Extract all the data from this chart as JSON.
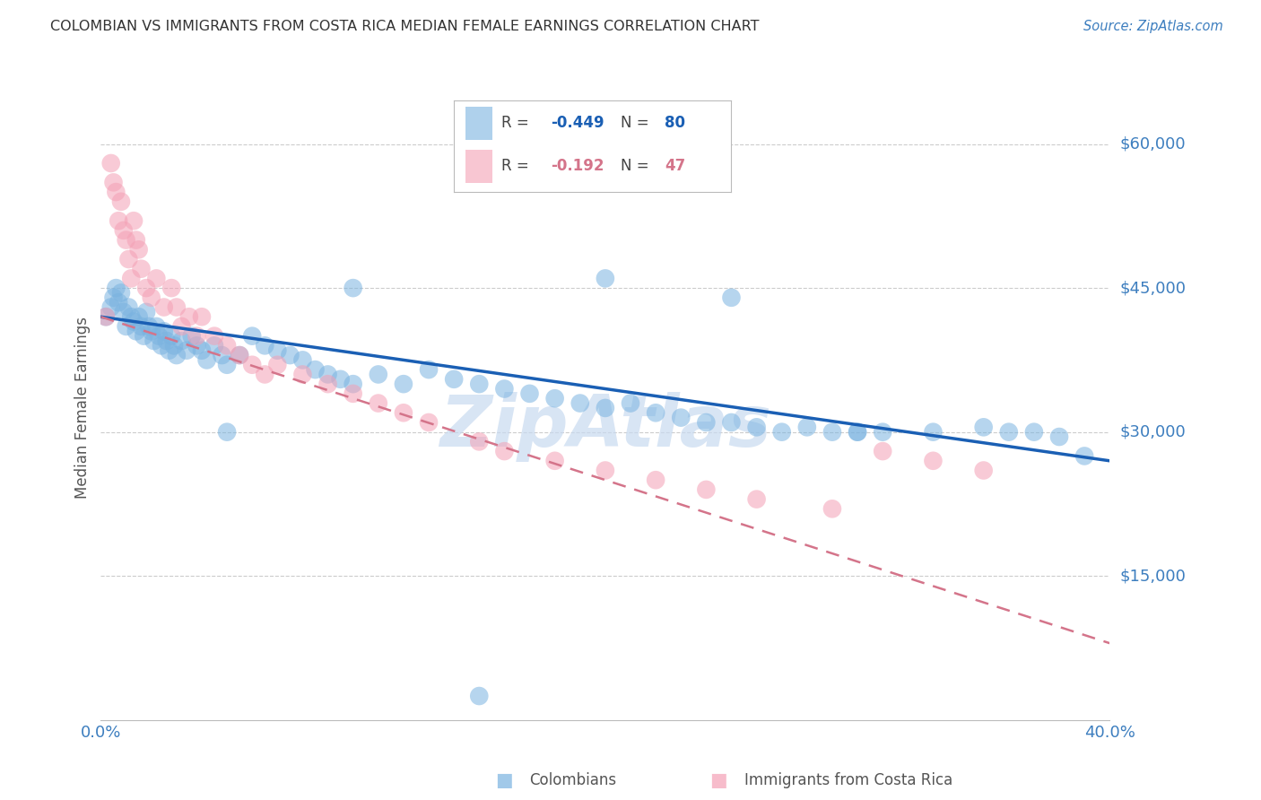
{
  "title": "COLOMBIAN VS IMMIGRANTS FROM COSTA RICA MEDIAN FEMALE EARNINGS CORRELATION CHART",
  "source": "Source: ZipAtlas.com",
  "ylabel": "Median Female Earnings",
  "ytick_labels": [
    "$60,000",
    "$45,000",
    "$30,000",
    "$15,000"
  ],
  "ytick_values": [
    60000,
    45000,
    30000,
    15000
  ],
  "ymin": 0,
  "ymax": 65000,
  "xmin": 0.0,
  "xmax": 0.4,
  "legend_blue_r": "-0.449",
  "legend_blue_n": "80",
  "legend_pink_r": "-0.192",
  "legend_pink_n": "47",
  "blue_color": "#7ab3e0",
  "pink_color": "#f4a0b5",
  "line_blue": "#1a5fb4",
  "line_pink": "#d4748a",
  "title_color": "#333333",
  "axis_label_color": "#3d7ebf",
  "watermark_color": "#c8daf0",
  "background_color": "#ffffff",
  "blue_scatter_x": [
    0.002,
    0.004,
    0.005,
    0.006,
    0.007,
    0.008,
    0.009,
    0.01,
    0.011,
    0.012,
    0.013,
    0.014,
    0.015,
    0.016,
    0.017,
    0.018,
    0.019,
    0.02,
    0.021,
    0.022,
    0.023,
    0.024,
    0.025,
    0.026,
    0.027,
    0.028,
    0.029,
    0.03,
    0.032,
    0.034,
    0.036,
    0.038,
    0.04,
    0.042,
    0.045,
    0.048,
    0.05,
    0.055,
    0.06,
    0.065,
    0.07,
    0.075,
    0.08,
    0.085,
    0.09,
    0.095,
    0.1,
    0.11,
    0.12,
    0.13,
    0.14,
    0.15,
    0.16,
    0.17,
    0.18,
    0.19,
    0.2,
    0.21,
    0.22,
    0.23,
    0.24,
    0.25,
    0.26,
    0.27,
    0.28,
    0.29,
    0.3,
    0.31,
    0.33,
    0.35,
    0.36,
    0.37,
    0.38,
    0.39,
    0.2,
    0.25,
    0.3,
    0.15,
    0.1,
    0.05
  ],
  "blue_scatter_y": [
    42000,
    43000,
    44000,
    45000,
    43500,
    44500,
    42500,
    41000,
    43000,
    42000,
    41500,
    40500,
    42000,
    41000,
    40000,
    42500,
    41000,
    40500,
    39500,
    41000,
    40000,
    39000,
    40500,
    39500,
    38500,
    40000,
    39000,
    38000,
    39500,
    38500,
    40000,
    39000,
    38500,
    37500,
    39000,
    38000,
    37000,
    38000,
    40000,
    39000,
    38500,
    38000,
    37500,
    36500,
    36000,
    35500,
    35000,
    36000,
    35000,
    36500,
    35500,
    35000,
    34500,
    34000,
    33500,
    33000,
    32500,
    33000,
    32000,
    31500,
    31000,
    31000,
    30500,
    30000,
    30500,
    30000,
    30000,
    30000,
    30000,
    30500,
    30000,
    30000,
    29500,
    27500,
    46000,
    44000,
    30000,
    2500,
    45000,
    30000
  ],
  "pink_scatter_x": [
    0.002,
    0.004,
    0.005,
    0.006,
    0.007,
    0.008,
    0.009,
    0.01,
    0.011,
    0.012,
    0.013,
    0.014,
    0.015,
    0.016,
    0.018,
    0.02,
    0.022,
    0.025,
    0.028,
    0.03,
    0.032,
    0.035,
    0.038,
    0.04,
    0.045,
    0.05,
    0.055,
    0.06,
    0.065,
    0.07,
    0.08,
    0.09,
    0.1,
    0.11,
    0.12,
    0.13,
    0.15,
    0.16,
    0.18,
    0.2,
    0.22,
    0.24,
    0.26,
    0.29,
    0.31,
    0.33,
    0.35
  ],
  "pink_scatter_y": [
    42000,
    58000,
    56000,
    55000,
    52000,
    54000,
    51000,
    50000,
    48000,
    46000,
    52000,
    50000,
    49000,
    47000,
    45000,
    44000,
    46000,
    43000,
    45000,
    43000,
    41000,
    42000,
    40000,
    42000,
    40000,
    39000,
    38000,
    37000,
    36000,
    37000,
    36000,
    35000,
    34000,
    33000,
    32000,
    31000,
    29000,
    28000,
    27000,
    26000,
    25000,
    24000,
    23000,
    22000,
    28000,
    27000,
    26000
  ]
}
